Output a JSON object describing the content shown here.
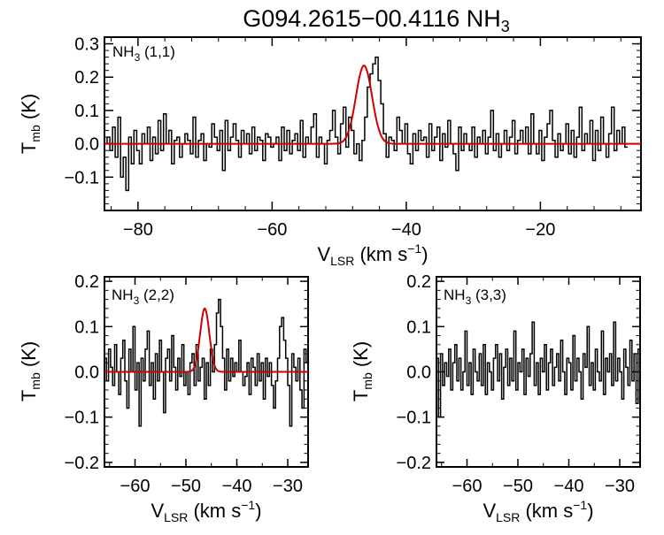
{
  "figure": {
    "title_main": "G094.2615−00.4116 NH",
    "title_sub": "3"
  },
  "chart_data": [
    {
      "type": "line",
      "panel": "top",
      "label_main": "NH",
      "label_sub": "3",
      "label_suffix": " (1,1)",
      "xlabel_main": "V",
      "xlabel_sub": "LSR",
      "xlabel_unit": " (km s",
      "xlabel_sup": "−1",
      "xlabel_end": ")",
      "ylabel_main": "T",
      "ylabel_sub": "mb",
      "ylabel_unit": " (K)",
      "xlim": [
        -85,
        -5
      ],
      "ylim": [
        -0.2,
        0.32
      ],
      "xticks": [
        -80,
        -60,
        -40,
        -20
      ],
      "xtick_labels": [
        "−80",
        "−60",
        "−40",
        "−20"
      ],
      "yticks": [
        -0.1,
        0.0,
        0.1,
        0.2,
        0.3
      ],
      "ytick_labels": [
        "−0.1",
        "0.0",
        "0.1",
        "0.2",
        "0.3"
      ],
      "spectrum": {
        "x_start": -85,
        "x_step": 0.4,
        "y": [
          0.0,
          0.02,
          -0.02,
          0.05,
          -0.04,
          0.08,
          -0.1,
          -0.04,
          -0.14,
          0.02,
          -0.06,
          0.04,
          -0.02,
          -0.06,
          0.03,
          0.0,
          0.05,
          -0.05,
          0.02,
          -0.03,
          0.07,
          -0.02,
          0.09,
          0.0,
          0.04,
          -0.06,
          0.01,
          0.02,
          -0.04,
          0.0,
          0.03,
          0.01,
          -0.03,
          0.08,
          -0.04,
          0.01,
          0.03,
          -0.05,
          0.0,
          -0.01,
          0.06,
          0.02,
          -0.02,
          0.04,
          -0.08,
          0.07,
          -0.02,
          0.02,
          0.06,
          0.01,
          -0.04,
          0.04,
          0.0,
          0.03,
          -0.03,
          0.05,
          -0.02,
          0.02,
          0.01,
          -0.05,
          0.03,
          0.02,
          -0.01,
          0.0,
          0.02,
          -0.05,
          0.05,
          -0.02,
          0.04,
          -0.03,
          0.01,
          0.03,
          -0.02,
          0.07,
          -0.04,
          0.02,
          0.0,
          0.05,
          0.09,
          -0.04,
          0.02,
          0.0,
          -0.06,
          0.01,
          0.04,
          0.1,
          0.02,
          -0.03,
          0.06,
          0.11,
          -0.01,
          0.08,
          0.04,
          -0.03,
          0.0,
          -0.05,
          0.01,
          0.08,
          0.17,
          0.21,
          0.24,
          0.26,
          0.19,
          0.12,
          0.03,
          -0.04,
          0.02,
          0.01,
          -0.02,
          0.08,
          0.04,
          0.0,
          0.06,
          -0.03,
          -0.06,
          0.03,
          -0.02,
          0.04,
          0.01,
          0.02,
          -0.04,
          0.06,
          -0.02,
          0.02,
          0.05,
          -0.05,
          0.03,
          -0.01,
          0.07,
          0.0,
          -0.03,
          -0.08,
          0.05,
          -0.02,
          0.03,
          0.0,
          -0.02,
          0.05,
          -0.04,
          0.02,
          0.0,
          0.04,
          -0.03,
          0.02,
          0.1,
          -0.02,
          0.03,
          -0.04,
          0.0,
          0.04,
          -0.02,
          0.02,
          0.07,
          -0.03,
          0.01,
          0.04,
          0.0,
          0.05,
          -0.03,
          0.09,
          0.0,
          -0.03,
          0.04,
          -0.05,
          0.02,
          0.06,
          0.1,
          0.01,
          -0.04,
          0.03,
          -0.02,
          0.0,
          0.06,
          -0.03,
          0.04,
          -0.04,
          0.02,
          0.11,
          -0.02,
          0.03,
          0.0,
          0.07,
          -0.05,
          0.04,
          -0.02,
          0.08,
          0.0,
          -0.04,
          0.03,
          0.11,
          -0.02,
          0.04,
          0.0,
          0.05,
          -0.01
        ]
      },
      "fit": {
        "center": -46.3,
        "sigma": 1.2,
        "amplitude": 0.235
      }
    },
    {
      "type": "line",
      "panel": "bottom-left",
      "label_main": "NH",
      "label_sub": "3",
      "label_suffix": " (2,2)",
      "xlabel_main": "V",
      "xlabel_sub": "LSR",
      "xlabel_unit": " (km s",
      "xlabel_sup": "−1",
      "xlabel_end": ")",
      "ylabel_main": "T",
      "ylabel_sub": "mb",
      "ylabel_unit": " (K)",
      "xlim": [
        -66,
        -26
      ],
      "ylim": [
        -0.21,
        0.21
      ],
      "xticks": [
        -60,
        -50,
        -40,
        -30
      ],
      "xtick_labels": [
        "−60",
        "−50",
        "−40",
        "−30"
      ],
      "yticks": [
        -0.2,
        -0.1,
        0.0,
        0.1,
        0.2
      ],
      "ytick_labels": [
        "−0.2",
        "−0.1",
        "0.0",
        "0.1",
        "0.2"
      ],
      "spectrum": {
        "x_start": -66,
        "x_step": 0.4,
        "y": [
          0.03,
          -0.02,
          0.05,
          0.01,
          -0.03,
          0.06,
          0.0,
          -0.05,
          0.03,
          0.07,
          -0.02,
          -0.08,
          0.05,
          0.0,
          0.1,
          -0.04,
          0.02,
          -0.12,
          0.03,
          -0.02,
          0.05,
          0.09,
          -0.03,
          0.02,
          -0.06,
          0.04,
          -0.02,
          0.07,
          0.0,
          -0.09,
          0.03,
          0.05,
          -0.02,
          0.08,
          0.01,
          -0.04,
          0.03,
          -0.01,
          0.06,
          -0.03,
          0.0,
          -0.05,
          0.02,
          0.04,
          -0.03,
          0.06,
          -0.02,
          0.01,
          0.03,
          -0.06,
          0.02,
          -0.03,
          0.05,
          0.0,
          0.06,
          0.13,
          0.16,
          0.1,
          0.03,
          -0.04,
          0.05,
          -0.02,
          0.03,
          -0.01,
          0.02,
          0.0,
          0.07,
          0.0,
          -0.03,
          -0.01,
          0.02,
          -0.05,
          0.03,
          0.01,
          -0.03,
          0.04,
          -0.02,
          0.02,
          -0.06,
          0.03,
          -0.01,
          0.02,
          -0.03,
          -0.08,
          -0.02,
          0.03,
          0.1,
          0.12,
          0.07,
          0.03,
          -0.03,
          -0.12,
          0.04,
          0.01,
          -0.02,
          0.03,
          -0.04,
          -0.08,
          0.05,
          0.02,
          0.0
        ]
      },
      "fit": {
        "center": -46.3,
        "sigma": 0.9,
        "amplitude": 0.14
      }
    },
    {
      "type": "line",
      "panel": "bottom-right",
      "label_main": "NH",
      "label_sub": "3",
      "label_suffix": " (3,3)",
      "xlabel_main": "V",
      "xlabel_sub": "LSR",
      "xlabel_unit": " (km s",
      "xlabel_sup": "−1",
      "xlabel_end": ")",
      "ylabel_main": "T",
      "ylabel_sub": "mb",
      "ylabel_unit": " (K)",
      "xlim": [
        -66,
        -26
      ],
      "ylim": [
        -0.21,
        0.21
      ],
      "xticks": [
        -60,
        -50,
        -40,
        -30
      ],
      "xtick_labels": [
        "−60",
        "−50",
        "−40",
        "−30"
      ],
      "yticks": [
        -0.2,
        -0.1,
        0.0,
        0.1,
        0.2
      ],
      "ytick_labels": [
        "−0.2",
        "−0.1",
        "0.0",
        "0.1",
        "0.2"
      ],
      "spectrum": {
        "x_start": -66,
        "x_step": 0.4,
        "y": [
          0.03,
          -0.1,
          0.04,
          -0.03,
          0.02,
          -0.01,
          0.05,
          -0.04,
          0.02,
          0.06,
          -0.02,
          0.03,
          -0.04,
          0.0,
          0.09,
          -0.03,
          0.02,
          -0.05,
          0.05,
          0.0,
          -0.02,
          0.04,
          -0.03,
          0.06,
          -0.05,
          0.02,
          0.0,
          -0.04,
          0.03,
          0.06,
          -0.02,
          0.04,
          -0.06,
          0.01,
          0.05,
          -0.03,
          0.03,
          -0.02,
          0.09,
          -0.04,
          0.02,
          0.0,
          0.05,
          -0.05,
          0.03,
          -0.01,
          0.04,
          0.11,
          -0.03,
          0.02,
          -0.05,
          0.03,
          0.0,
          0.06,
          -0.04,
          0.02,
          0.05,
          -0.03,
          0.01,
          0.04,
          -0.02,
          0.07,
          0.0,
          -0.05,
          0.03,
          0.02,
          -0.04,
          0.08,
          -0.02,
          0.03,
          0.0,
          -0.06,
          0.04,
          0.01,
          0.1,
          -0.03,
          0.02,
          -0.04,
          0.05,
          0.0,
          -0.02,
          0.09,
          -0.05,
          0.03,
          0.0,
          0.04,
          -0.03,
          0.11,
          -0.02,
          0.03,
          0.0,
          -0.06,
          0.05,
          0.01,
          -0.03,
          0.07,
          -0.02,
          0.04,
          -0.07,
          0.05,
          -0.04
        ]
      },
      "fit": null
    }
  ]
}
